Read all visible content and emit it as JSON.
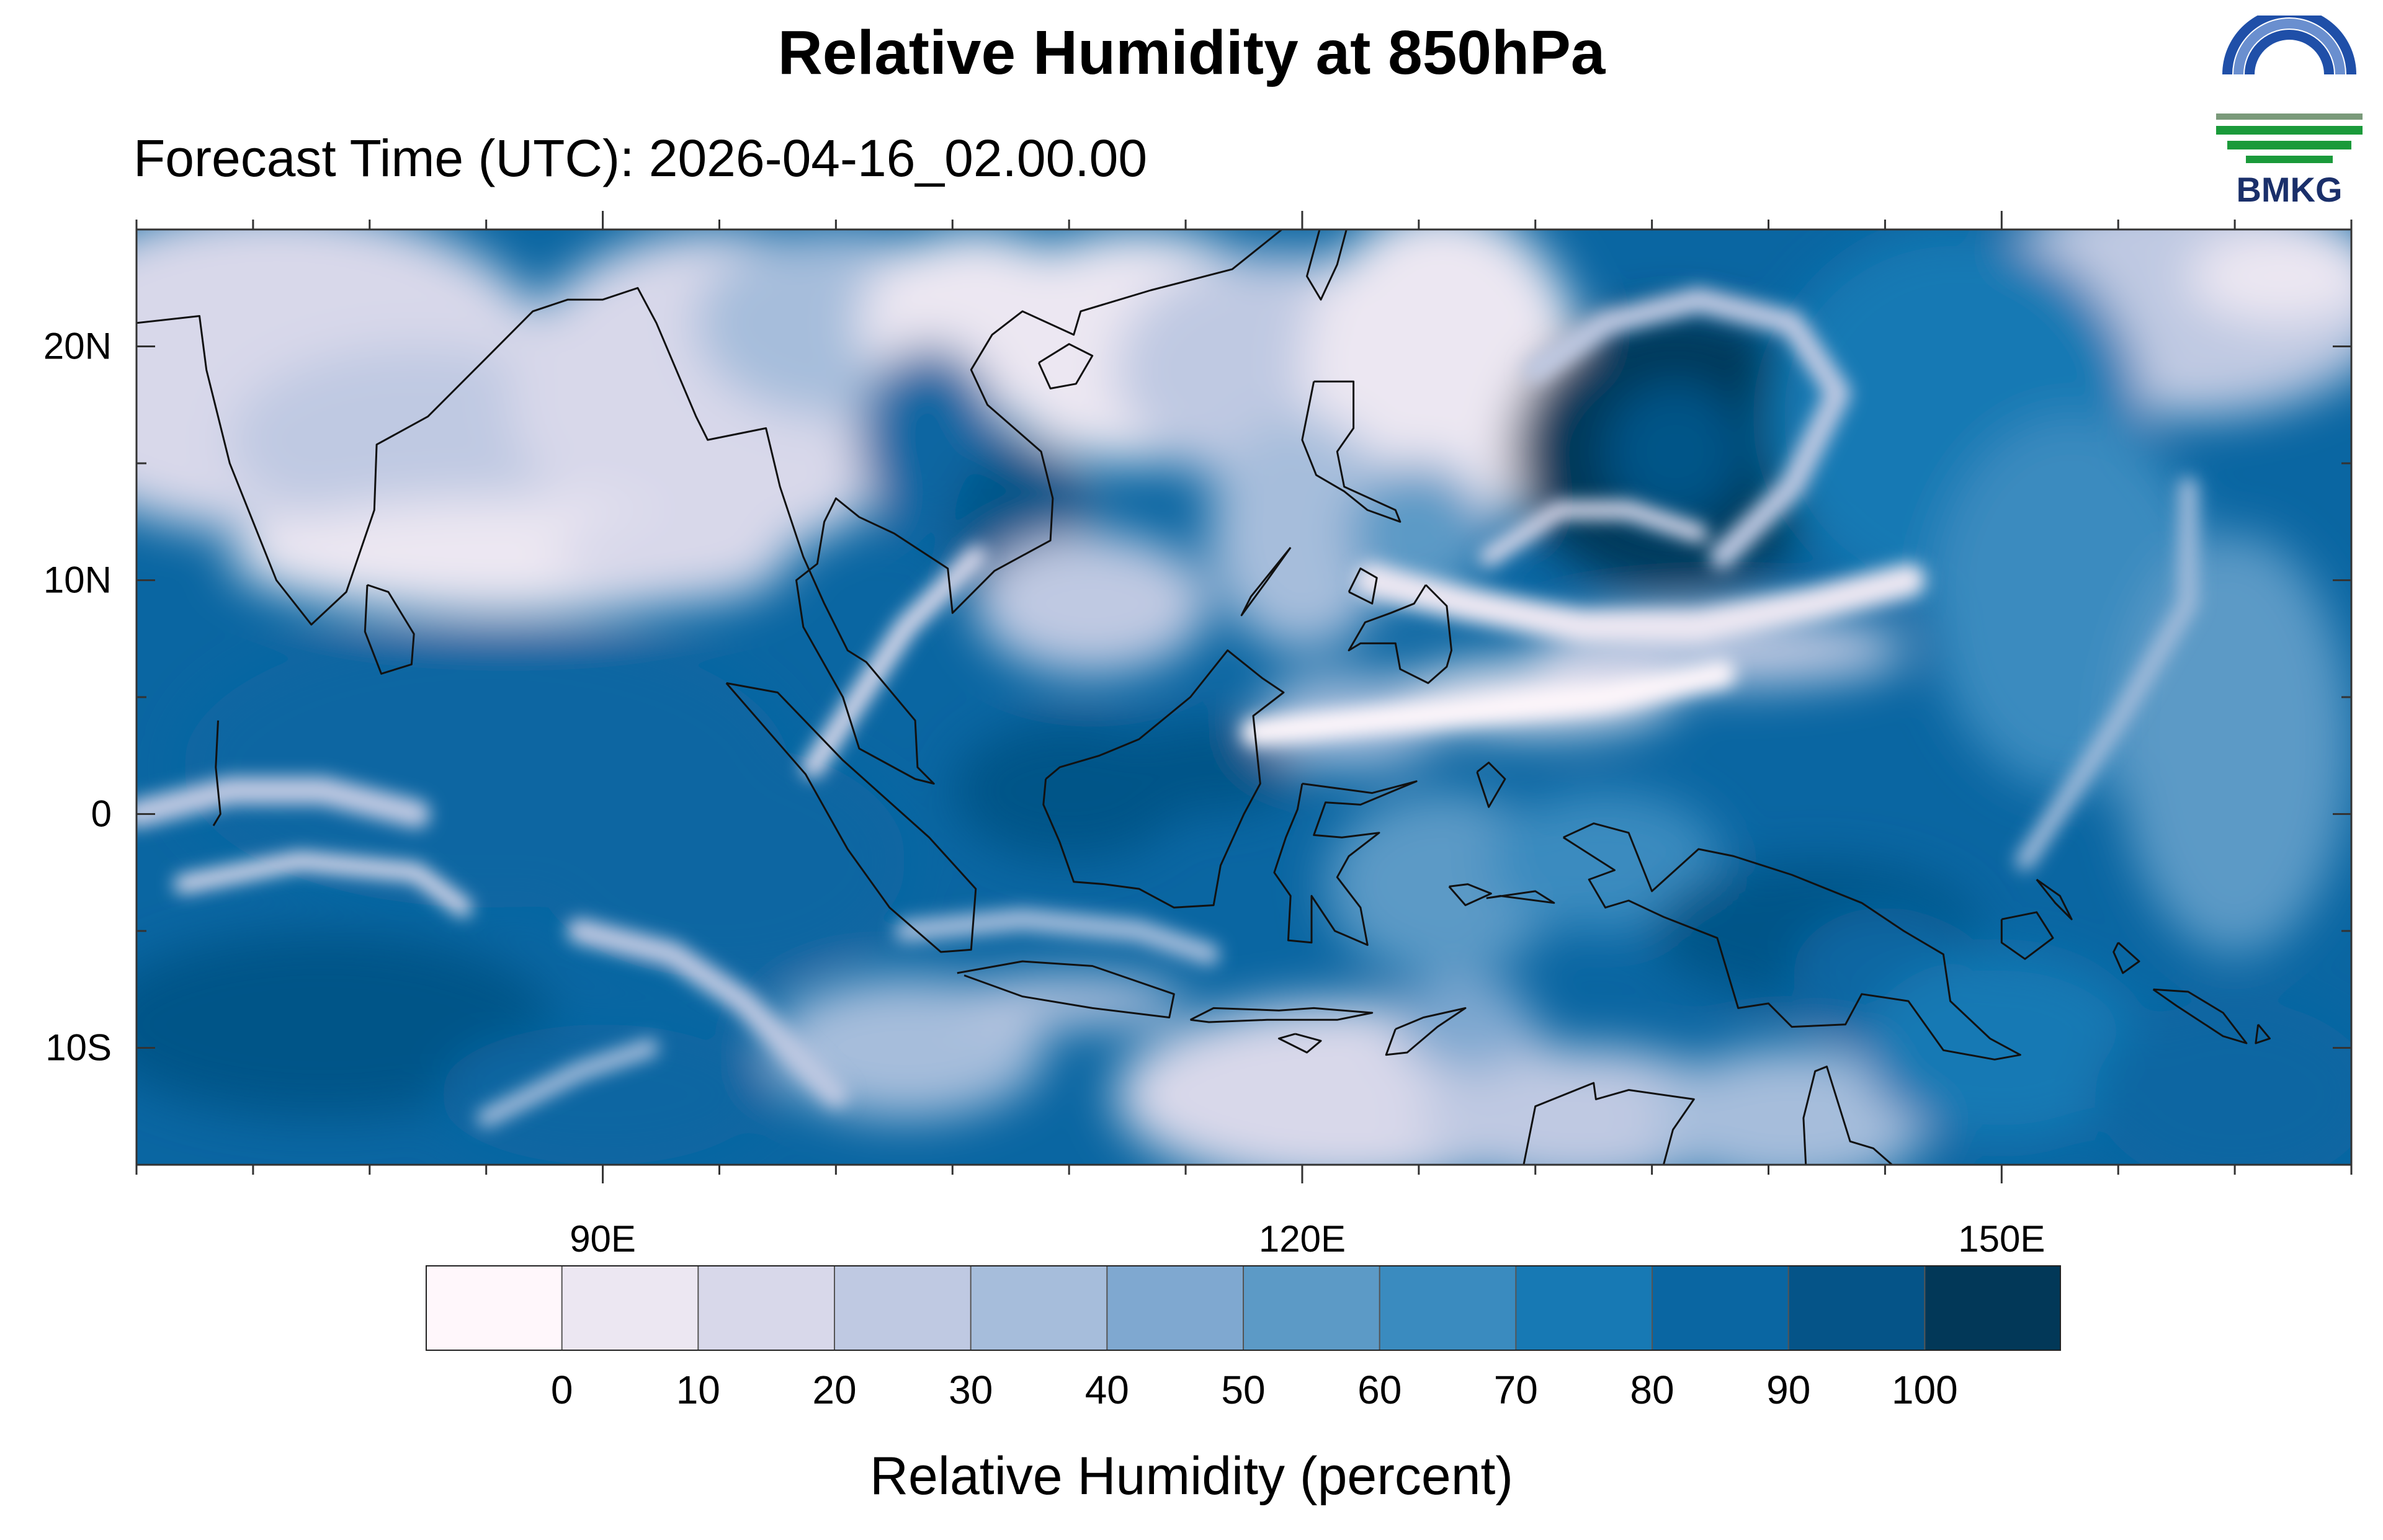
{
  "header": {
    "title": "Relative Humidity at 850hPa",
    "subtitle": "Forecast Time (UTC): 2026-04-16_02.00.00"
  },
  "logo": {
    "text": "BMKG",
    "colors": {
      "blue": "#1f4fa8",
      "green": "#1a9a3a",
      "ring": "#6a8fcf"
    }
  },
  "map": {
    "lon_range": [
      70,
      165
    ],
    "lat_range": [
      -15,
      25
    ],
    "lat_ticks": [
      {
        "value": 20,
        "label": "20N"
      },
      {
        "value": 10,
        "label": "10N"
      },
      {
        "value": 0,
        "label": "0"
      },
      {
        "value": -10,
        "label": "10S"
      }
    ],
    "lon_ticks": [
      {
        "value": 90,
        "label": "90E"
      },
      {
        "value": 120,
        "label": "120E"
      },
      {
        "value": 150,
        "label": "150E"
      }
    ],
    "field": "relative humidity (%) at 850 hPa",
    "features": {
      "cyclone_center": {
        "lon": 136,
        "lat": 15.5
      }
    }
  },
  "colorbar": {
    "colors": [
      "#fff7fb",
      "#ece7f2",
      "#d8d8ea",
      "#bfc9e2",
      "#a6bddb",
      "#7fa8d0",
      "#5c9ac6",
      "#3a8bbf",
      "#1779b4",
      "#0a66a2",
      "#055488",
      "#023858"
    ],
    "labels": [
      "0",
      "10",
      "20",
      "30",
      "40",
      "50",
      "60",
      "70",
      "80",
      "90",
      "100"
    ],
    "title": "Relative Humidity (percent)"
  }
}
